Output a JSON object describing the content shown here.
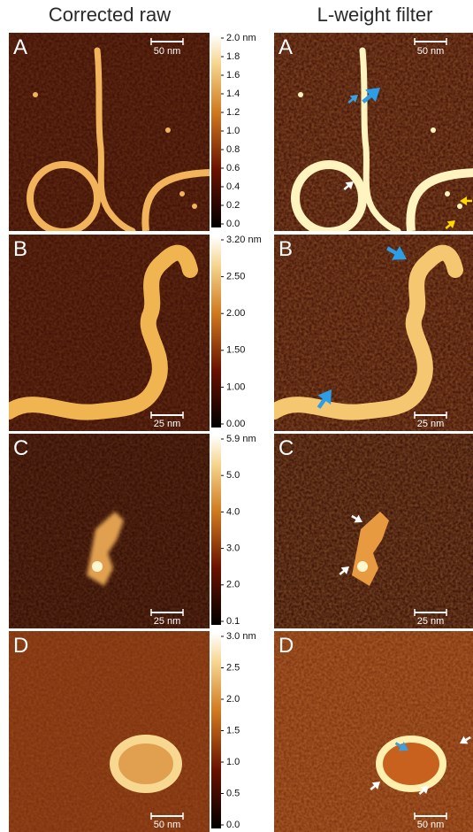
{
  "header": {
    "left": "Corrected raw",
    "right": "L-weight filter"
  },
  "panels": [
    {
      "letter_left": "A",
      "letter_right": "A",
      "colorbar": [
        "2.0 nm",
        "1.8",
        "1.6",
        "1.4",
        "1.2",
        "1.0",
        "0.8",
        "0.6",
        "0.4",
        "0.2",
        "0.0"
      ],
      "scalebar_left": "50 nm",
      "scalebar_right": "50 nm"
    },
    {
      "letter_left": "B",
      "letter_right": "B",
      "colorbar": [
        "3.20 nm",
        "2.50",
        "2.00",
        "1.50",
        "1.00",
        "0.00"
      ],
      "scalebar_left": "25 nm",
      "scalebar_right": "25 nm"
    },
    {
      "letter_left": "C",
      "letter_right": "C",
      "colorbar": [
        "5.9 nm",
        "5.0",
        "4.0",
        "3.0",
        "2.0",
        "0.1"
      ],
      "scalebar_left": "25 nm",
      "scalebar_right": "25 nm"
    },
    {
      "letter_left": "D",
      "letter_right": "D",
      "colorbar": [
        "3.0 nm",
        "2.5",
        "2.0",
        "1.5",
        "1.0",
        "0.5",
        "0.0"
      ],
      "scalebar_left": "50 nm",
      "scalebar_right": "50 nm"
    }
  ]
}
